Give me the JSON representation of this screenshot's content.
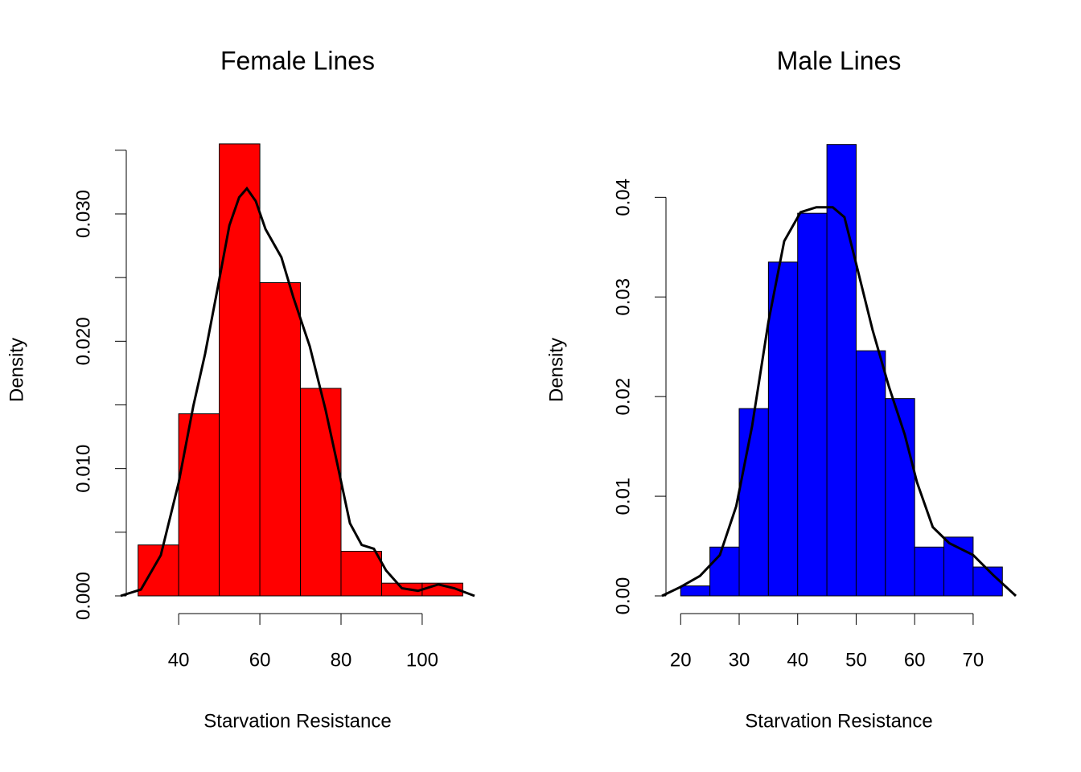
{
  "chart_data": [
    {
      "type": "histogram",
      "title": "Female Lines",
      "xlabel": "Starvation Resistance",
      "ylabel": "Density",
      "bins": [
        30,
        40,
        50,
        60,
        70,
        80,
        90,
        100,
        110
      ],
      "values": [
        0.004,
        0.0143,
        0.0355,
        0.0246,
        0.0163,
        0.0035,
        0.001,
        0.001
      ],
      "color": "#ff0000",
      "xlim": [
        25.7,
        112.9
      ],
      "ylim": [
        0,
        0.036
      ],
      "xticks": [
        40,
        60,
        80,
        100
      ],
      "yticks": [
        {
          "value": 0,
          "label": "0.000"
        },
        {
          "value": 0.01,
          "label": "0.010"
        },
        {
          "value": 0.02,
          "label": "0.020"
        },
        {
          "value": 0.03,
          "label": "0.030"
        }
      ],
      "yminor_ticks": [
        0.005,
        0.015,
        0.025,
        0.035
      ],
      "density": {
        "color": "#000000",
        "x": [
          25.7,
          30.7,
          35.6,
          40,
          43.6,
          46.5,
          49.5,
          52.5,
          54.9,
          56.8,
          59,
          61.4,
          65.3,
          68.3,
          72.3,
          76.2,
          79.2,
          82.2,
          85.1,
          88.1,
          91.1,
          95,
          99,
          104,
          107.9,
          112.9
        ],
        "y": [
          0,
          0.0005,
          0.0032,
          0.0089,
          0.0149,
          0.019,
          0.024,
          0.0291,
          0.0313,
          0.032,
          0.031,
          0.0288,
          0.0266,
          0.0234,
          0.0196,
          0.0146,
          0.0102,
          0.0057,
          0.004,
          0.0037,
          0.002,
          0.0006,
          0.0004,
          0.0009,
          0.0006,
          0
        ]
      }
    },
    {
      "type": "histogram",
      "title": "Male Lines",
      "xlabel": "Starvation Resistance",
      "ylabel": "Density",
      "bins": [
        20,
        25,
        30,
        35,
        40,
        45,
        50,
        55,
        60,
        65,
        70,
        75
      ],
      "values": [
        0.001,
        0.0049,
        0.0188,
        0.0335,
        0.0384,
        0.0453,
        0.0246,
        0.0198,
        0.0049,
        0.0059,
        0.0029
      ],
      "color": "#0000ff",
      "xlim": [
        16.8,
        77.3
      ],
      "ylim": [
        0,
        0.046
      ],
      "xticks": [
        20,
        30,
        40,
        50,
        60,
        70
      ],
      "yticks": [
        {
          "value": 0,
          "label": "0.00"
        },
        {
          "value": 0.01,
          "label": "0.01"
        },
        {
          "value": 0.02,
          "label": "0.02"
        },
        {
          "value": 0.03,
          "label": "0.03"
        },
        {
          "value": 0.04,
          "label": "0.04"
        }
      ],
      "density": {
        "color": "#000000",
        "x": [
          16.8,
          20,
          23.3,
          26.7,
          29.5,
          32.2,
          35,
          37.7,
          40.5,
          43.2,
          46,
          48,
          50.1,
          52.8,
          55.6,
          58.3,
          60.4,
          63.1,
          65.9,
          70,
          73.4,
          77.3
        ],
        "y": [
          0,
          0.0009,
          0.002,
          0.0041,
          0.009,
          0.017,
          0.0275,
          0.0356,
          0.0385,
          0.039,
          0.039,
          0.038,
          0.0331,
          0.0267,
          0.021,
          0.0162,
          0.0114,
          0.0069,
          0.0053,
          0.0041,
          0.0021,
          0
        ]
      }
    }
  ]
}
